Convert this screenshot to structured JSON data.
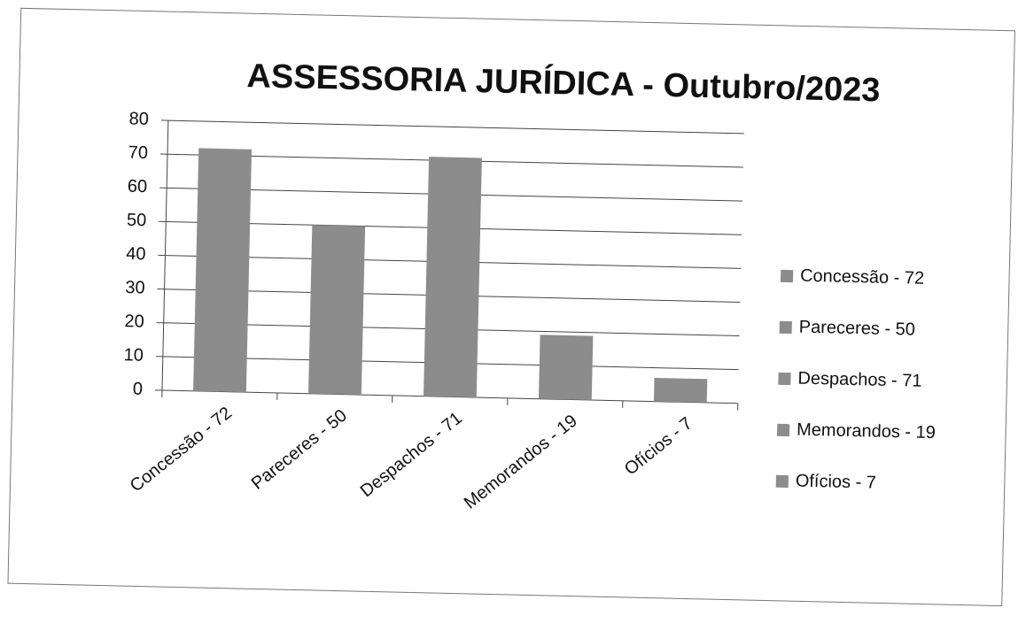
{
  "chart_data": {
    "type": "bar",
    "title": "ASSESSORIA JURÍDICA - Outubro/2023",
    "categories": [
      "Concessão - 72",
      "Pareceres - 50",
      "Despachos - 71",
      "Memorandos - 19",
      "Ofícios - 7"
    ],
    "values": [
      72,
      50,
      71,
      19,
      7
    ],
    "color": "#8c8c8c",
    "ylim": [
      0,
      80
    ],
    "yticks": [
      0,
      10,
      20,
      30,
      40,
      50,
      60,
      70,
      80
    ],
    "grid": true,
    "legend": "right"
  }
}
